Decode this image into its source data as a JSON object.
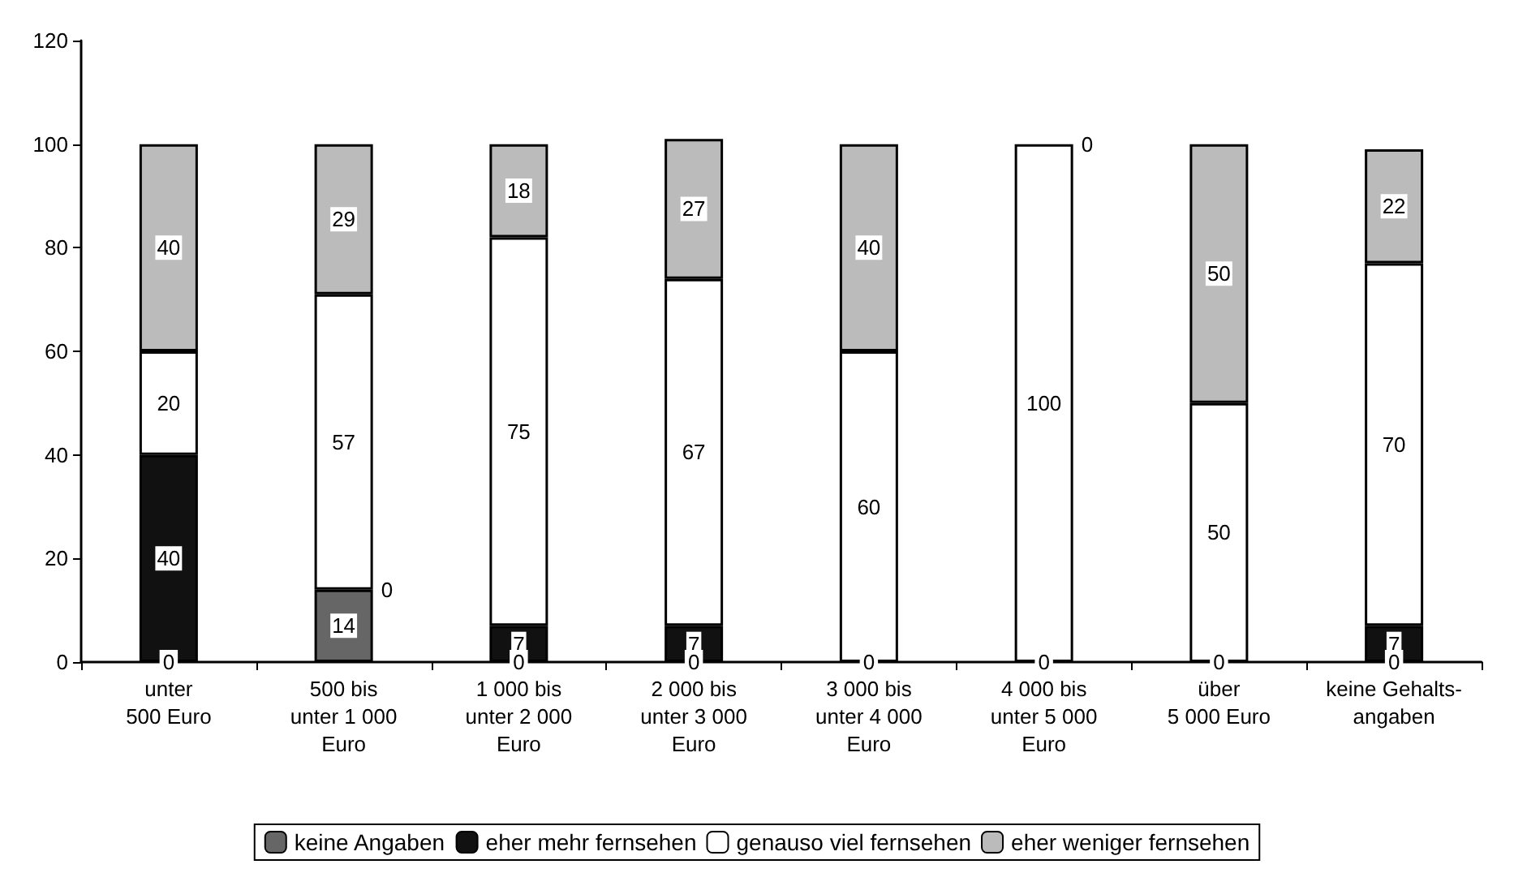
{
  "chart_data": {
    "type": "bar",
    "stacked": true,
    "categories": [
      "unter\n500 Euro",
      "500 bis\nunter 1 000\nEuro",
      "1 000 bis\nunter 2 000\nEuro",
      "2 000 bis\nunter 3 000\nEuro",
      "3 000 bis\nunter 4 000\nEuro",
      "4 000 bis\nunter 5 000\nEuro",
      "über\n5 000 Euro",
      "keine Gehalts-\nangaben"
    ],
    "series": [
      {
        "name": "keine Angaben",
        "color": "#666666",
        "values": [
          0,
          14,
          0,
          0,
          0,
          0,
          0,
          0
        ],
        "value_labels": [
          null,
          "14",
          null,
          null,
          null,
          null,
          null,
          null
        ]
      },
      {
        "name": "eher mehr fernsehen",
        "color": "#111111",
        "values": [
          40,
          0,
          7,
          7,
          0,
          0,
          0,
          7
        ],
        "value_labels": [
          "40",
          null,
          "7",
          "7",
          null,
          null,
          null,
          "7"
        ]
      },
      {
        "name": "genauso viel fernsehen",
        "color": "#ffffff",
        "values": [
          20,
          57,
          75,
          67,
          60,
          100,
          50,
          70
        ],
        "value_labels": [
          "20",
          "57",
          "75",
          "67",
          "60",
          "100",
          "50",
          "70"
        ]
      },
      {
        "name": "eher weniger fernsehen",
        "color": "#bbbbbb",
        "values": [
          40,
          29,
          18,
          27,
          40,
          0,
          50,
          22
        ],
        "value_labels": [
          "40",
          "29",
          "18",
          "27",
          "40",
          null,
          "50",
          "22"
        ]
      }
    ],
    "annotations": [
      {
        "text": "0",
        "x": "unter\n500 Euro",
        "y": 0
      },
      {
        "text": "0",
        "x": "500 bis\nunter 1 000\nEuro",
        "y": 14
      },
      {
        "text": "0",
        "x": "1 000 bis\nunter 2 000\nEuro",
        "y": 0
      },
      {
        "text": "0",
        "x": "2 000 bis\nunter 3 000\nEuro",
        "y": 0
      },
      {
        "text": "0",
        "x": "3 000 bis\nunter 4 000\nEuro",
        "y": 0
      },
      {
        "text": "0",
        "x": "4 000 bis\nunter 5 000\nEuro",
        "y": 0
      },
      {
        "text": "0",
        "x": "4 000 bis\nunter 5 000\nEuro",
        "y": 100
      },
      {
        "text": "0",
        "x": "über\n5 000 Euro",
        "y": 0
      },
      {
        "text": "0",
        "x": "keine Gehalts-\nangaben",
        "y": 0
      }
    ],
    "ylim": [
      0,
      120
    ],
    "yticks": [
      0,
      20,
      40,
      60,
      80,
      100,
      120
    ],
    "grid": false,
    "legend": "bottom"
  }
}
